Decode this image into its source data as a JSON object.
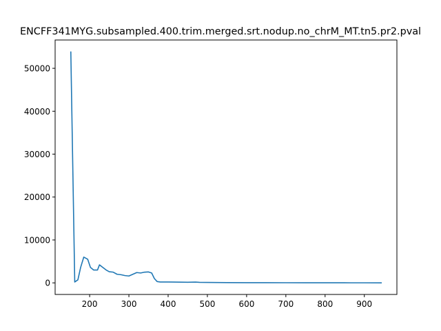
{
  "chart_data": {
    "type": "line",
    "title": "ENCFF341MYG.subsampled.400.trim.merged.srt.nodup.no_chrM_MT.tn5.pr2.pval",
    "xlabel": "",
    "ylabel": "",
    "xlim": [
      112,
      983
    ],
    "ylim": [
      -2700,
      56600
    ],
    "xticks": [
      200,
      300,
      400,
      500,
      600,
      700,
      800,
      900
    ],
    "yticks": [
      0,
      10000,
      20000,
      30000,
      40000,
      50000
    ],
    "grid": false,
    "color": "#1f77b4",
    "series": [
      {
        "x": [
          152,
          162,
          170,
          177,
          185,
          195,
          202,
          210,
          220,
          225,
          232,
          242,
          250,
          260,
          270,
          280,
          290,
          300,
          310,
          320,
          330,
          340,
          350,
          358,
          365,
          372,
          380,
          400,
          450,
          470,
          480,
          500,
          550,
          600,
          650,
          700,
          750,
          800,
          850,
          900,
          943
        ],
        "y": [
          53800,
          200,
          700,
          3600,
          6000,
          5500,
          3600,
          3000,
          3000,
          4200,
          3700,
          3000,
          2600,
          2500,
          2000,
          1900,
          1700,
          1600,
          2000,
          2400,
          2300,
          2500,
          2550,
          2300,
          1000,
          300,
          200,
          200,
          150,
          180,
          120,
          100,
          60,
          50,
          40,
          30,
          25,
          20,
          15,
          12,
          10
        ]
      }
    ]
  }
}
